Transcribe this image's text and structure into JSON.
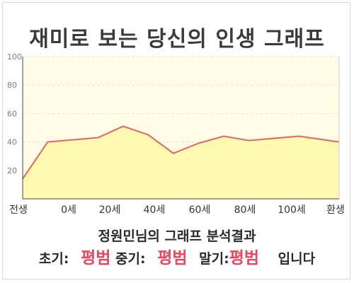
{
  "title": "재미로 보는 당신의 인생 그래프",
  "summary": "정원민님의 그래프 분석결과",
  "result": {
    "early_label": "초기:",
    "early_value": "평범",
    "middle_label": "중기:",
    "middle_value": "평범",
    "late_label": "말기:",
    "late_value": "평범",
    "suffix": "입니다"
  },
  "colors": {
    "plot_background": "#fffde6",
    "area_fill": "#fffab0",
    "line": "#e06666",
    "accent_text": "#e8475f"
  },
  "chart_data": {
    "type": "area",
    "title": "재미로 보는 당신의 인생 그래프",
    "xlabel": "",
    "ylabel": "",
    "x_ticks": [
      "전생",
      "0세",
      "20세",
      "40세",
      "60세",
      "80세",
      "100세",
      "환생"
    ],
    "y_ticks": [
      20,
      40,
      60,
      80,
      100
    ],
    "ylim": [
      0,
      100
    ],
    "grid": true,
    "series": [
      {
        "points": [
          {
            "x": "전생",
            "y": 14
          },
          {
            "x": "0세",
            "y": 40
          },
          {
            "x": "20세",
            "y": 43
          },
          {
            "x": "30세",
            "y": 51
          },
          {
            "x": "40세",
            "y": 45
          },
          {
            "x": "50세",
            "y": 32
          },
          {
            "x": "60세",
            "y": 39
          },
          {
            "x": "70세",
            "y": 44
          },
          {
            "x": "80세",
            "y": 41
          },
          {
            "x": "100세",
            "y": 44
          },
          {
            "x": "환생",
            "y": 40
          }
        ]
      }
    ]
  }
}
